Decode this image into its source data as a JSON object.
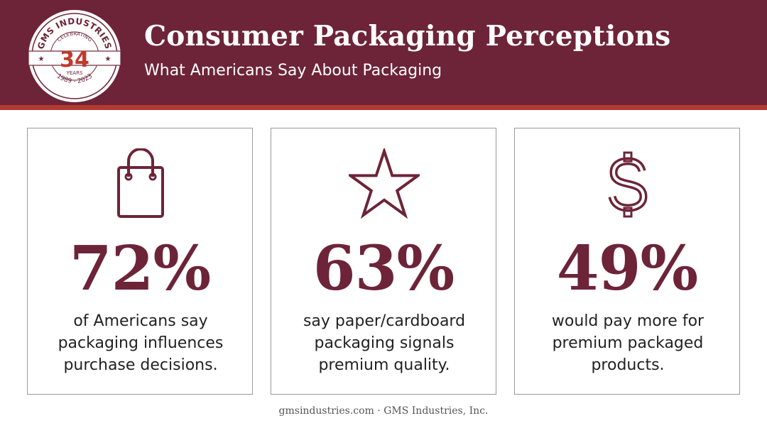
{
  "header": {
    "title": "Consumer Packaging Perceptions",
    "subtitle": "What Americans Say About Packaging"
  },
  "badge": {
    "company": "GMS INDUSTRIES",
    "celebrating": "CELEBRATING",
    "years_number": "34",
    "years_label": "YEARS",
    "date_range": "1989 - 2023"
  },
  "cards": [
    {
      "icon": "shopping-bag-icon",
      "value": "72%",
      "lines": [
        "of Americans say",
        "packaging influences",
        "purchase decisions."
      ]
    },
    {
      "icon": "star-icon",
      "value": "63%",
      "lines": [
        "say paper/cardboard",
        "packaging signals",
        "premium quality."
      ]
    },
    {
      "icon": "dollar-sign-icon",
      "value": "49%",
      "lines": [
        "would pay more for",
        "premium packaged",
        "products."
      ]
    }
  ],
  "footer": {
    "text": "gmsindustries.com · GMS Industries, Inc."
  },
  "colors": {
    "header_bg": "#6d2438",
    "header_stripe": "#b23a2e",
    "accent": "#6d2438",
    "badge_red": "#c0392b"
  }
}
